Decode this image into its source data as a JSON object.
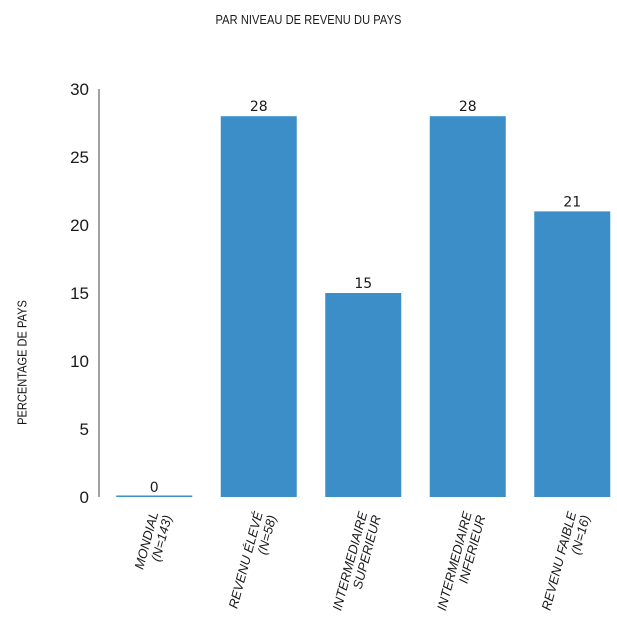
{
  "chart_data": {
    "type": "bar",
    "title": "PAR NIVEAU DE REVENU DU PAYS",
    "ylabel": "PERCENTAGE DE PAYS",
    "xlabel": "",
    "ylim": [
      0,
      30
    ],
    "yticks": [
      0,
      5,
      10,
      15,
      20,
      25,
      30
    ],
    "grid": false,
    "bar_color": "#3b8ec8",
    "categories": [
      [
        "MONDIAL",
        "(N=143)"
      ],
      [
        "REVENU ÉLEVÉ",
        "(N=58)"
      ],
      [
        "INTERMEDIAIRE",
        "SUPERIEUR"
      ],
      [
        "INTERMEDIAIRE",
        "INFERIEUR"
      ],
      [
        "REVENU FAIBLE",
        "(N=16)"
      ]
    ],
    "values": [
      0,
      28,
      15,
      28,
      21
    ]
  }
}
